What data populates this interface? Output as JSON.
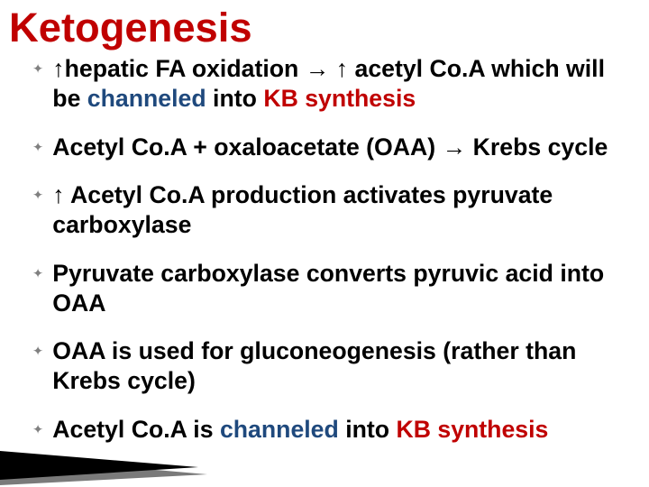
{
  "title": {
    "text": "Ketogenesis",
    "color": "#c00000",
    "font_size_pt": 34,
    "font_weight": 700
  },
  "bullets": {
    "marker_glyph": "✦",
    "marker_color": "#808080",
    "marker_font_size_pt": 11,
    "font_size_pt": 20,
    "font_weight": 700,
    "line_height": 1.25,
    "text_color": "#000000",
    "accent_blue": "#1f497d",
    "accent_red": "#c00000",
    "up_arrow": "↑",
    "right_arrow": "→",
    "items": [
      {
        "spans": [
          {
            "t": "↑hepatic FA oxidation → ↑ acetyl Co.A which will be ",
            "c": "black"
          },
          {
            "t": "channeled",
            "c": "blue"
          },
          {
            "t": " into ",
            "c": "black"
          },
          {
            "t": "KB synthesis",
            "c": "red"
          }
        ]
      },
      {
        "spans": [
          {
            "t": "Acetyl Co.A + oxaloacetate (OAA) → Krebs cycle",
            "c": "black"
          }
        ]
      },
      {
        "spans": [
          {
            "t": "↑ Acetyl Co.A production activates pyruvate carboxylase",
            "c": "black"
          }
        ]
      },
      {
        "spans": [
          {
            "t": "Pyruvate carboxylase converts pyruvic acid into OAA",
            "c": "black"
          }
        ]
      },
      {
        "spans": [
          {
            "t": "OAA is used for gluconeogenesis (rather than Krebs cycle)",
            "c": "black"
          }
        ]
      },
      {
        "spans": [
          {
            "t": "Acetyl Co.A is ",
            "c": "black"
          },
          {
            "t": "channeled",
            "c": "blue"
          },
          {
            "t": " into ",
            "c": "black"
          },
          {
            "t": "KB synthesis",
            "c": "red"
          }
        ]
      }
    ]
  },
  "decoration": {
    "wedge_fill": "#000000",
    "wedge_shadow": "#7a7a7a",
    "background": "#ffffff"
  }
}
